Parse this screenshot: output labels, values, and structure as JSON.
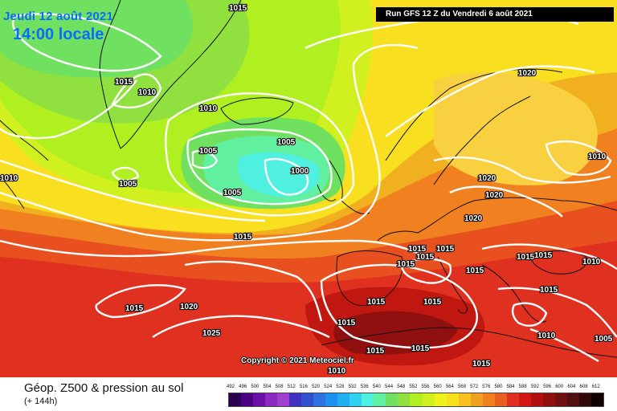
{
  "date_line": "Jeudi 12 août 2021",
  "time_line": "14:00 locale",
  "run_label": "Run GFS 12 Z du Vendredi 6 août 2021",
  "copyright": "Copyright © 2021 Meteociel.fr",
  "product_title": "Géop. Z500 & pression au sol",
  "product_sub": "(+ 144h)",
  "legend_ticks": [
    "492",
    "496",
    "500",
    "504",
    "508",
    "512",
    "516",
    "520",
    "524",
    "528",
    "532",
    "536",
    "540",
    "544",
    "548",
    "552",
    "556",
    "560",
    "564",
    "568",
    "572",
    "576",
    "580",
    "584",
    "588",
    "592",
    "596",
    "600",
    "604",
    "608",
    "612"
  ],
  "legend_colors": [
    "#2a0050",
    "#4a0080",
    "#6a10a8",
    "#8a28c0",
    "#a040d0",
    "#4030c0",
    "#3050d0",
    "#3070e0",
    "#2090f0",
    "#20b0f0",
    "#30d0f0",
    "#50f0e0",
    "#60f0a0",
    "#70e060",
    "#90e040",
    "#b0f020",
    "#d0f020",
    "#f0f020",
    "#f8e020",
    "#f8c020",
    "#f0a020",
    "#f08020",
    "#e86020",
    "#e03020",
    "#d01810",
    "#b01010",
    "#901010",
    "#701010",
    "#501010",
    "#300808",
    "#100000"
  ],
  "isobars": {
    "l1015_nw": "1015",
    "l1010_nw": "1010",
    "l1015_top": "1015",
    "l1010_mid": "1010",
    "l1005_a": "1005",
    "l1005_b": "1005",
    "l1005_c": "1005",
    "l1000": "1000",
    "l1005_d": "1005",
    "l1010_w": "1010",
    "l1015_mid": "1015",
    "l1020_n": "1020",
    "l1020_a": "1020",
    "l1020_b": "1020",
    "l1020_c": "1020",
    "l1010_e": "1010",
    "l1015_f1": "1015",
    "l1015_f2": "1015",
    "l1015_f3": "1015",
    "l1015_f4": "1015",
    "l1015_f5": "1015",
    "l1015_it": "1015",
    "l1015_bal": "1015",
    "l1015_hb": "1015",
    "l1015_atl": "1015",
    "l1020_atl": "1020",
    "l1025": "1025",
    "l1015_iber": "1015",
    "l1015_alg1": "1015",
    "l1015_alg2": "1015",
    "l1010_sah": "1010",
    "l1015_lib": "1015",
    "l1010_tur": "1010",
    "l1005_me": "1005",
    "l1015_balk": "1015",
    "l1015_rus": "1015",
    "l1010_ukr": "1010",
    "l1015_x": "1015"
  }
}
